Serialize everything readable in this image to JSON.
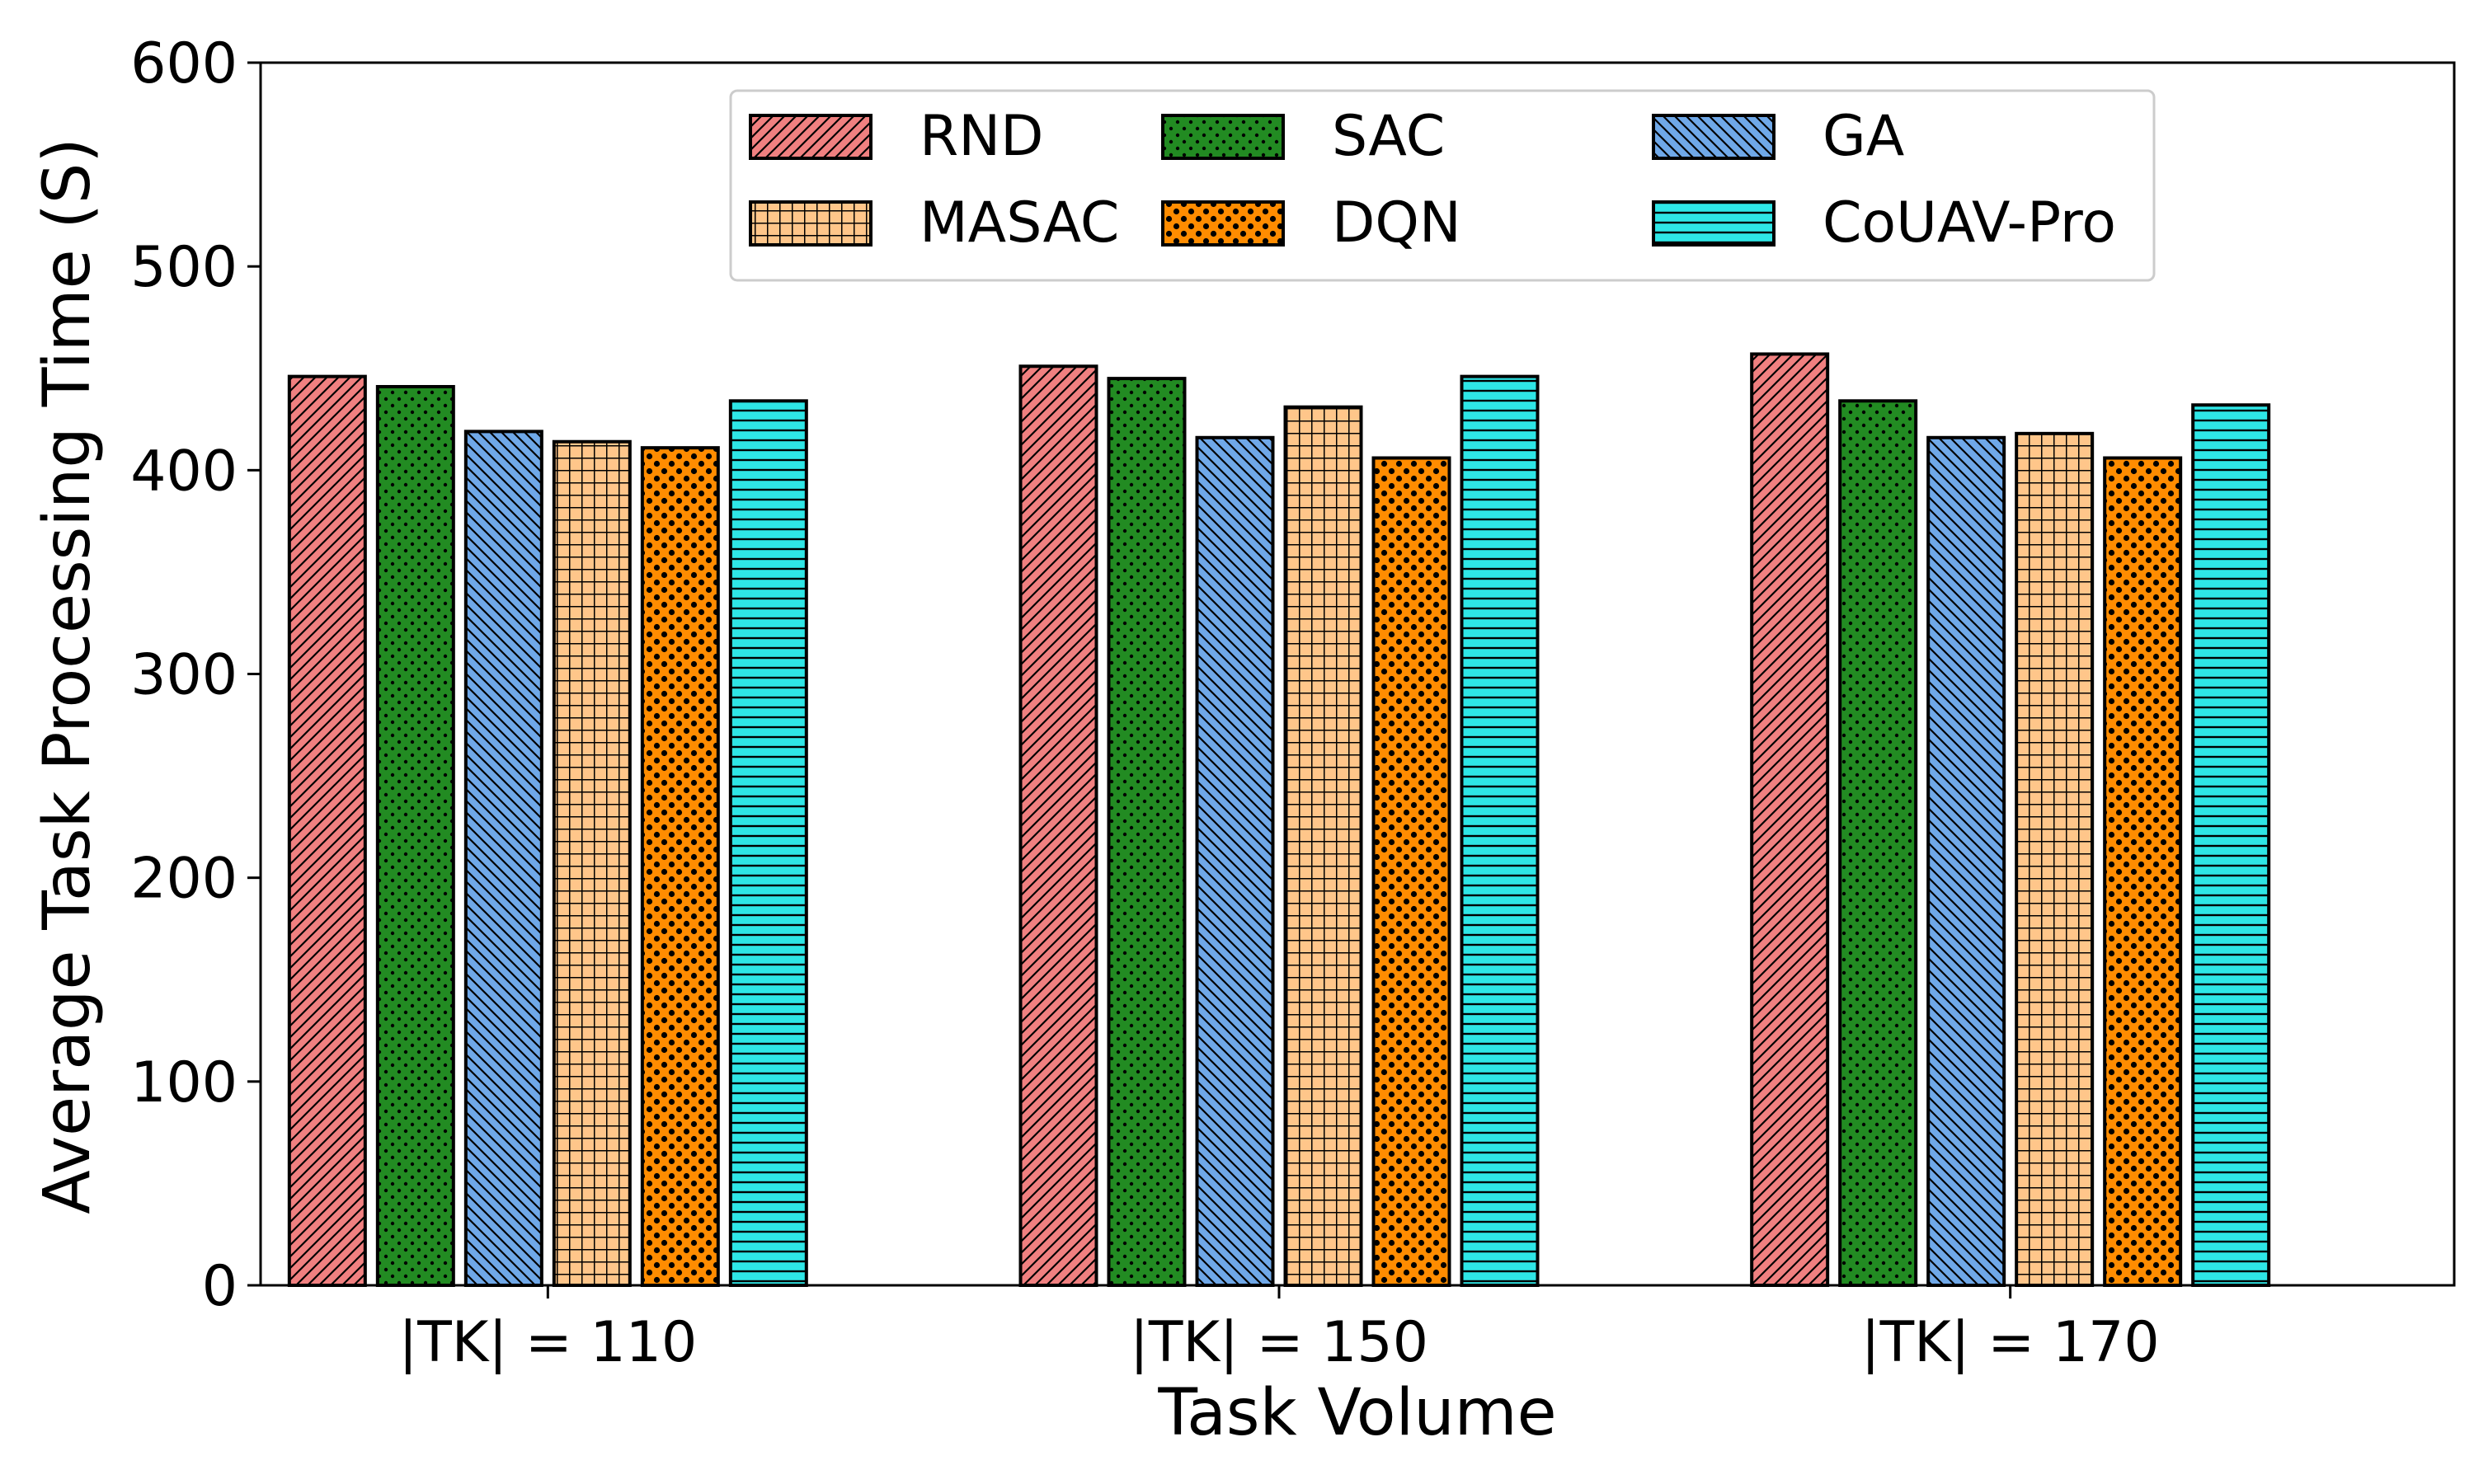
{
  "chart_data": {
    "type": "bar",
    "title": "",
    "xlabel": "Task Volume",
    "ylabel": "Average Task Processing Time (S)",
    "ylim": [
      0,
      600
    ],
    "yticks": [
      0,
      100,
      200,
      300,
      400,
      500,
      600
    ],
    "categories": [
      "|TK| = 110",
      "|TK| = 150",
      "|TK| = 170"
    ],
    "series": [
      {
        "name": "RND",
        "color": "#f08080",
        "pattern": "diag-up",
        "values": [
          446,
          451,
          457
        ]
      },
      {
        "name": "SAC",
        "color": "#228b22",
        "pattern": "dots",
        "values": [
          441,
          445,
          434
        ]
      },
      {
        "name": "GA",
        "color": "#6fa8e8",
        "pattern": "diag-down",
        "values": [
          419,
          416,
          416
        ]
      },
      {
        "name": "MASAC",
        "color": "#ffc68a",
        "pattern": "grid",
        "values": [
          414,
          431,
          418
        ]
      },
      {
        "name": "DQN",
        "color": "#ff8c00",
        "pattern": "circles",
        "values": [
          411,
          406,
          406
        ]
      },
      {
        "name": "CoUAV-Pro",
        "color": "#2ee6e6",
        "pattern": "horizontal",
        "values": [
          434,
          446,
          432
        ]
      }
    ],
    "legend": {
      "position": "top-center",
      "columns": 3
    }
  }
}
